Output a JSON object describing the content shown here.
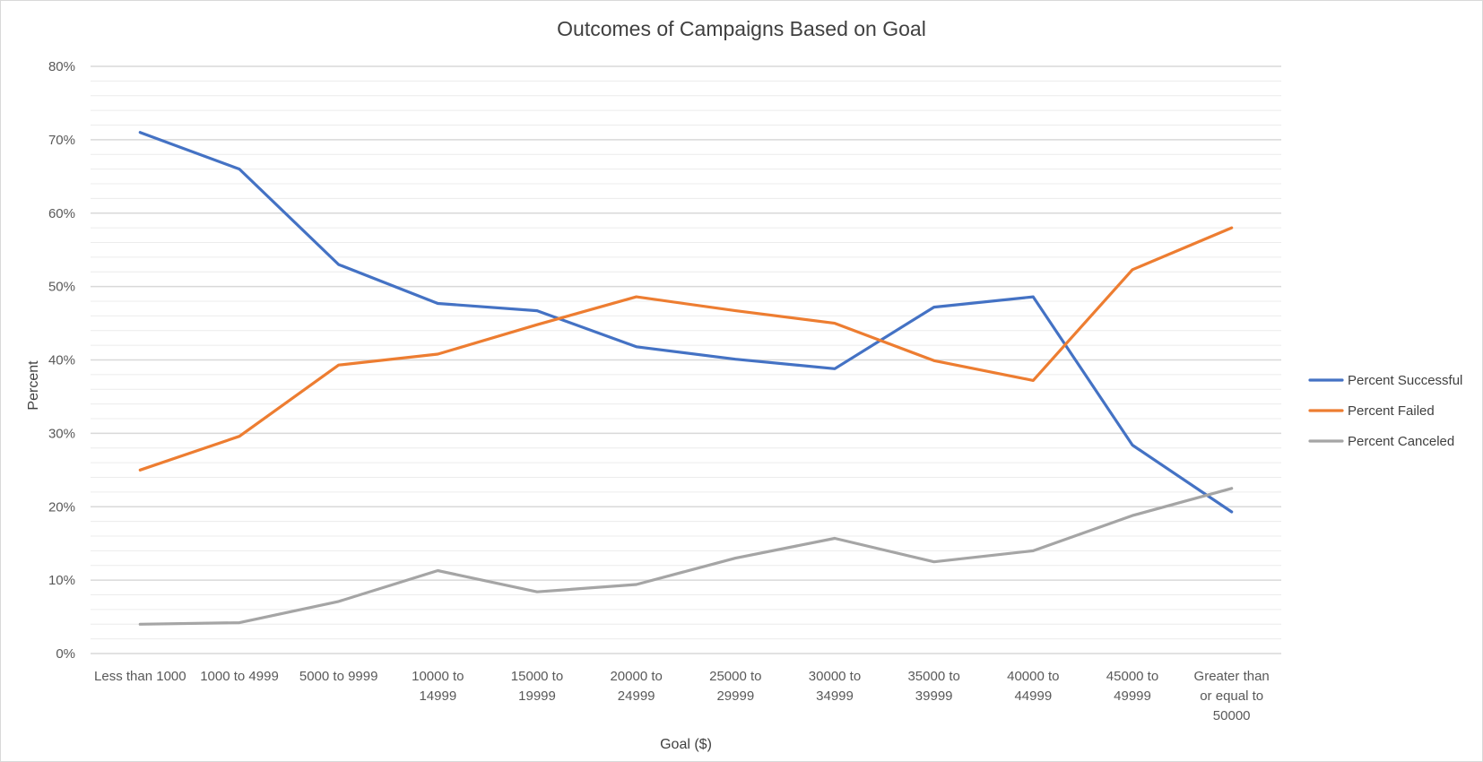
{
  "chart_data": {
    "type": "line",
    "title": "Outcomes of Campaigns Based on Goal",
    "xlabel": "Goal ($)",
    "ylabel": "Percent",
    "ylim": [
      0,
      0.8
    ],
    "y_ticks": [
      "0%",
      "10%",
      "20%",
      "30%",
      "40%",
      "50%",
      "60%",
      "70%",
      "80%"
    ],
    "y_tick_values": [
      0,
      0.1,
      0.2,
      0.3,
      0.4,
      0.5,
      0.6,
      0.7,
      0.8
    ],
    "grid": true,
    "legend_position": "right",
    "categories": [
      [
        "Less than 1000"
      ],
      [
        "1000 to 4999"
      ],
      [
        "5000 to 9999"
      ],
      [
        "10000 to",
        "14999"
      ],
      [
        "15000 to",
        "19999"
      ],
      [
        "20000 to",
        "24999"
      ],
      [
        "25000 to",
        "29999"
      ],
      [
        "30000 to",
        "34999"
      ],
      [
        "35000 to",
        "39999"
      ],
      [
        "40000 to",
        "44999"
      ],
      [
        "45000 to",
        "49999"
      ],
      [
        "Greater than",
        "or equal to",
        "50000"
      ]
    ],
    "series": [
      {
        "name": "Percent Successful",
        "color": "#4472c4",
        "values": [
          0.71,
          0.66,
          0.53,
          0.477,
          0.467,
          0.418,
          0.401,
          0.388,
          0.472,
          0.486,
          0.284,
          0.193
        ]
      },
      {
        "name": "Percent Failed",
        "color": "#ed7d31",
        "values": [
          0.25,
          0.296,
          0.393,
          0.408,
          0.448,
          0.486,
          0.467,
          0.45,
          0.399,
          0.372,
          0.523,
          0.58
        ]
      },
      {
        "name": "Percent Canceled",
        "color": "#a5a5a5",
        "values": [
          0.04,
          0.042,
          0.071,
          0.113,
          0.084,
          0.094,
          0.13,
          0.157,
          0.125,
          0.14,
          0.188,
          0.225
        ]
      }
    ]
  }
}
